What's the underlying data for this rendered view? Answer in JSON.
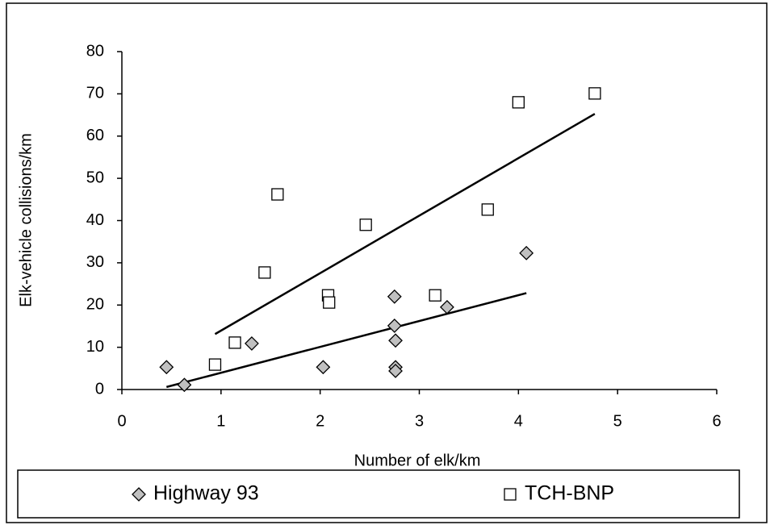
{
  "chart_data": {
    "type": "scatter",
    "x_label": "Number of elk/km",
    "y_label": "Elk-vehicle collisions/km",
    "xlim": [
      0,
      6
    ],
    "xticks": [
      0,
      1,
      2,
      3,
      4,
      5,
      6
    ],
    "ylim": [
      0,
      80
    ],
    "yticks": [
      0,
      10,
      20,
      30,
      40,
      50,
      60,
      70,
      80
    ],
    "trendline": "linear",
    "legend": "bottom",
    "series": [
      {
        "name": "Highway 93",
        "marker": "diamond",
        "color": "#c0c0c0",
        "x": [
          0.45,
          0.63,
          1.31,
          2.03,
          2.75,
          2.75,
          2.76,
          2.76,
          2.76,
          3.28,
          4.08
        ],
        "values": [
          5.3,
          1.1,
          10.9,
          5.3,
          22.0,
          15.1,
          11.6,
          5.3,
          4.4,
          19.5,
          32.3
        ]
      },
      {
        "name": "TCH-BNP",
        "marker": "square",
        "color": "#ffffff",
        "x": [
          0.94,
          1.14,
          1.44,
          1.57,
          2.08,
          2.09,
          2.46,
          3.16,
          3.69,
          4.0,
          4.77
        ],
        "values": [
          5.9,
          11.1,
          27.7,
          46.2,
          22.3,
          20.6,
          39.0,
          22.3,
          42.6,
          68.0,
          70.1
        ]
      }
    ]
  }
}
